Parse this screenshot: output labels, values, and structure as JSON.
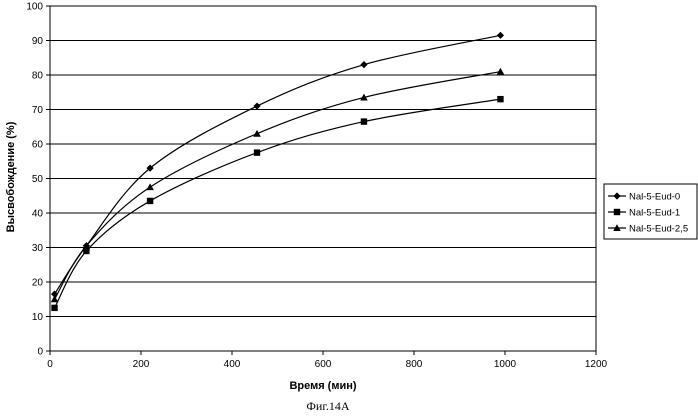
{
  "chart_data": {
    "type": "line",
    "title": "",
    "xlabel": "Время (мин)",
    "ylabel": "Высвобождение (%)",
    "xlim": [
      0,
      1200
    ],
    "ylim": [
      0,
      100
    ],
    "x_ticks": [
      0,
      200,
      400,
      600,
      800,
      1000,
      1200
    ],
    "y_ticks": [
      0,
      10,
      20,
      30,
      40,
      50,
      60,
      70,
      80,
      90,
      100
    ],
    "grid": "horizontal",
    "legend_position": "right",
    "smooth": true,
    "series": [
      {
        "name": "Nal-5-Eud-0",
        "marker": "diamond",
        "color": "#000000",
        "x": [
          10,
          80,
          220,
          455,
          690,
          990
        ],
        "y": [
          16.5,
          30.5,
          53,
          71,
          83,
          91.5
        ]
      },
      {
        "name": "Nal-5-Eud-1",
        "marker": "square",
        "color": "#000000",
        "x": [
          10,
          80,
          220,
          455,
          690,
          990
        ],
        "y": [
          12.5,
          29,
          43.5,
          57.5,
          66.5,
          73
        ]
      },
      {
        "name": "Nal-5-Eud-2,5",
        "marker": "triangle",
        "color": "#000000",
        "x": [
          10,
          80,
          220,
          455,
          690,
          990
        ],
        "y": [
          15,
          30.5,
          47.5,
          63,
          73.5,
          81
        ]
      }
    ]
  },
  "figure_caption": "Фиг.14А"
}
